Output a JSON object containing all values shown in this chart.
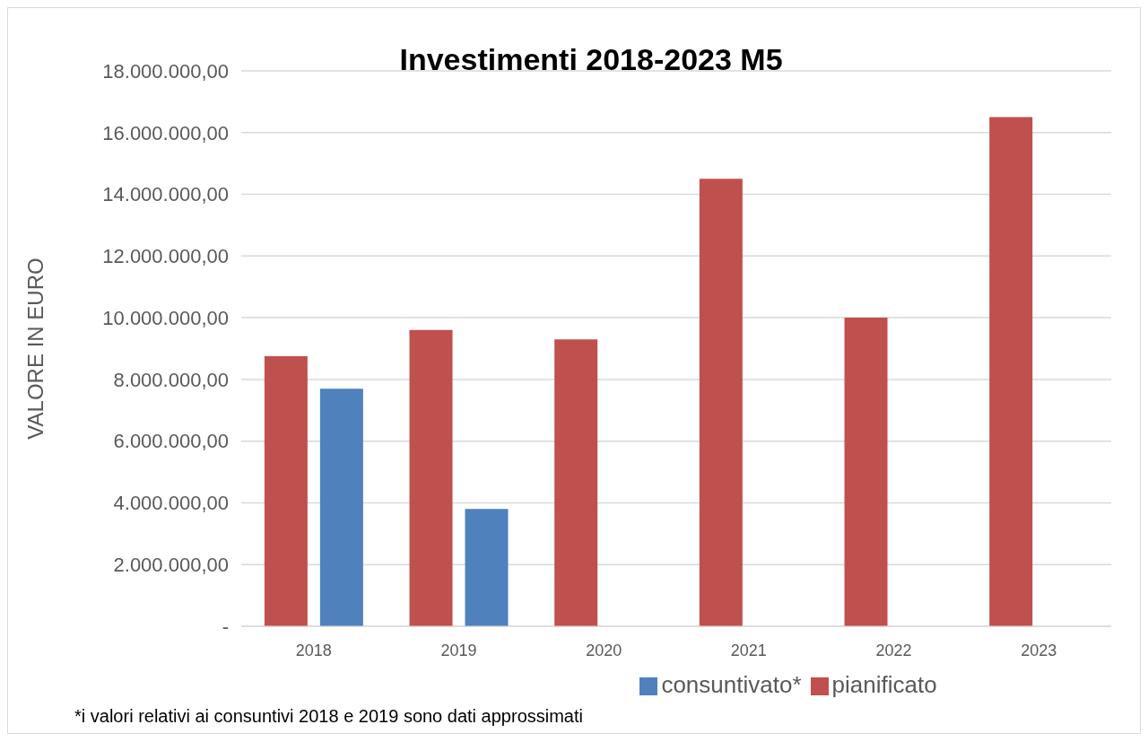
{
  "chart_data": {
    "type": "bar",
    "title": "Investimenti 2018-2023 M5",
    "ylabel": "VALORE IN EURO",
    "categories": [
      "2018",
      "2019",
      "2020",
      "2021",
      "2022",
      "2023"
    ],
    "series": [
      {
        "name": "pianificato",
        "color": "#c0504d",
        "values": [
          8750000,
          9600000,
          9300000,
          14500000,
          10000000,
          16500000
        ]
      },
      {
        "name": "consuntivato*",
        "color": "#4f81bd",
        "values": [
          7700000,
          3800000,
          null,
          null,
          null,
          null
        ]
      }
    ],
    "ylim": [
      0,
      18000000
    ],
    "yticks": [
      {
        "value": 0,
        "label": "-"
      },
      {
        "value": 2000000,
        "label": "2.000.000,00"
      },
      {
        "value": 4000000,
        "label": "4.000.000,00"
      },
      {
        "value": 6000000,
        "label": "6.000.000,00"
      },
      {
        "value": 8000000,
        "label": "8.000.000,00"
      },
      {
        "value": 10000000,
        "label": "10.000.000,00"
      },
      {
        "value": 12000000,
        "label": "12.000.000,00"
      },
      {
        "value": 14000000,
        "label": "14.000.000,00"
      },
      {
        "value": 16000000,
        "label": "16.000.000,00"
      },
      {
        "value": 18000000,
        "label": "18.000.000,00"
      }
    ],
    "grid": "y",
    "legend": "bottom",
    "annotations": [
      "*i valori relativi ai consuntivi 2018 e 2019 sono dati approssimati"
    ]
  }
}
